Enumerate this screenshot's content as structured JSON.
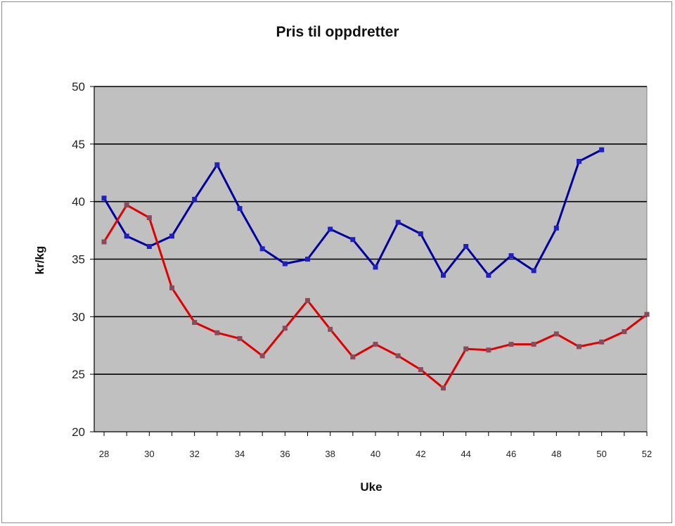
{
  "chart_data": {
    "type": "line",
    "title": "Pris til oppdretter",
    "xlabel": "Uke",
    "ylabel": "kr/kg",
    "xlim": [
      28,
      52
    ],
    "ylim": [
      20,
      50
    ],
    "x_ticks": [
      28,
      30,
      32,
      34,
      36,
      38,
      40,
      42,
      44,
      46,
      48,
      50,
      52
    ],
    "y_ticks": [
      20,
      25,
      30,
      35,
      40,
      45,
      50
    ],
    "grid": "horizontal",
    "legend": "none",
    "plot_background": "#c0c0c0",
    "series": [
      {
        "color": "#0000a0",
        "marker_color": "#2020c0",
        "x": [
          28,
          29,
          30,
          31,
          32,
          33,
          34,
          35,
          36,
          37,
          38,
          39,
          40,
          41,
          42,
          43,
          44,
          45,
          46,
          47,
          48,
          49,
          50
        ],
        "values": [
          40.3,
          37.0,
          36.1,
          37.0,
          40.2,
          43.2,
          39.4,
          35.9,
          34.6,
          35.0,
          37.6,
          36.7,
          34.3,
          38.2,
          37.2,
          33.6,
          36.1,
          33.6,
          35.3,
          34.0,
          37.7,
          43.5,
          44.5
        ]
      },
      {
        "color": "#e00000",
        "marker_color": "#8a4a5a",
        "x": [
          28,
          29,
          30,
          31,
          32,
          33,
          34,
          35,
          36,
          37,
          38,
          39,
          40,
          41,
          42,
          43,
          44,
          45,
          46,
          47,
          48,
          49,
          50,
          51,
          52
        ],
        "values": [
          36.5,
          39.7,
          38.6,
          32.5,
          29.5,
          28.6,
          28.1,
          26.6,
          29.0,
          31.4,
          28.9,
          26.5,
          27.6,
          26.6,
          25.4,
          23.8,
          27.2,
          27.1,
          27.6,
          27.6,
          28.5,
          27.4,
          27.8,
          28.7,
          30.2
        ]
      }
    ]
  }
}
